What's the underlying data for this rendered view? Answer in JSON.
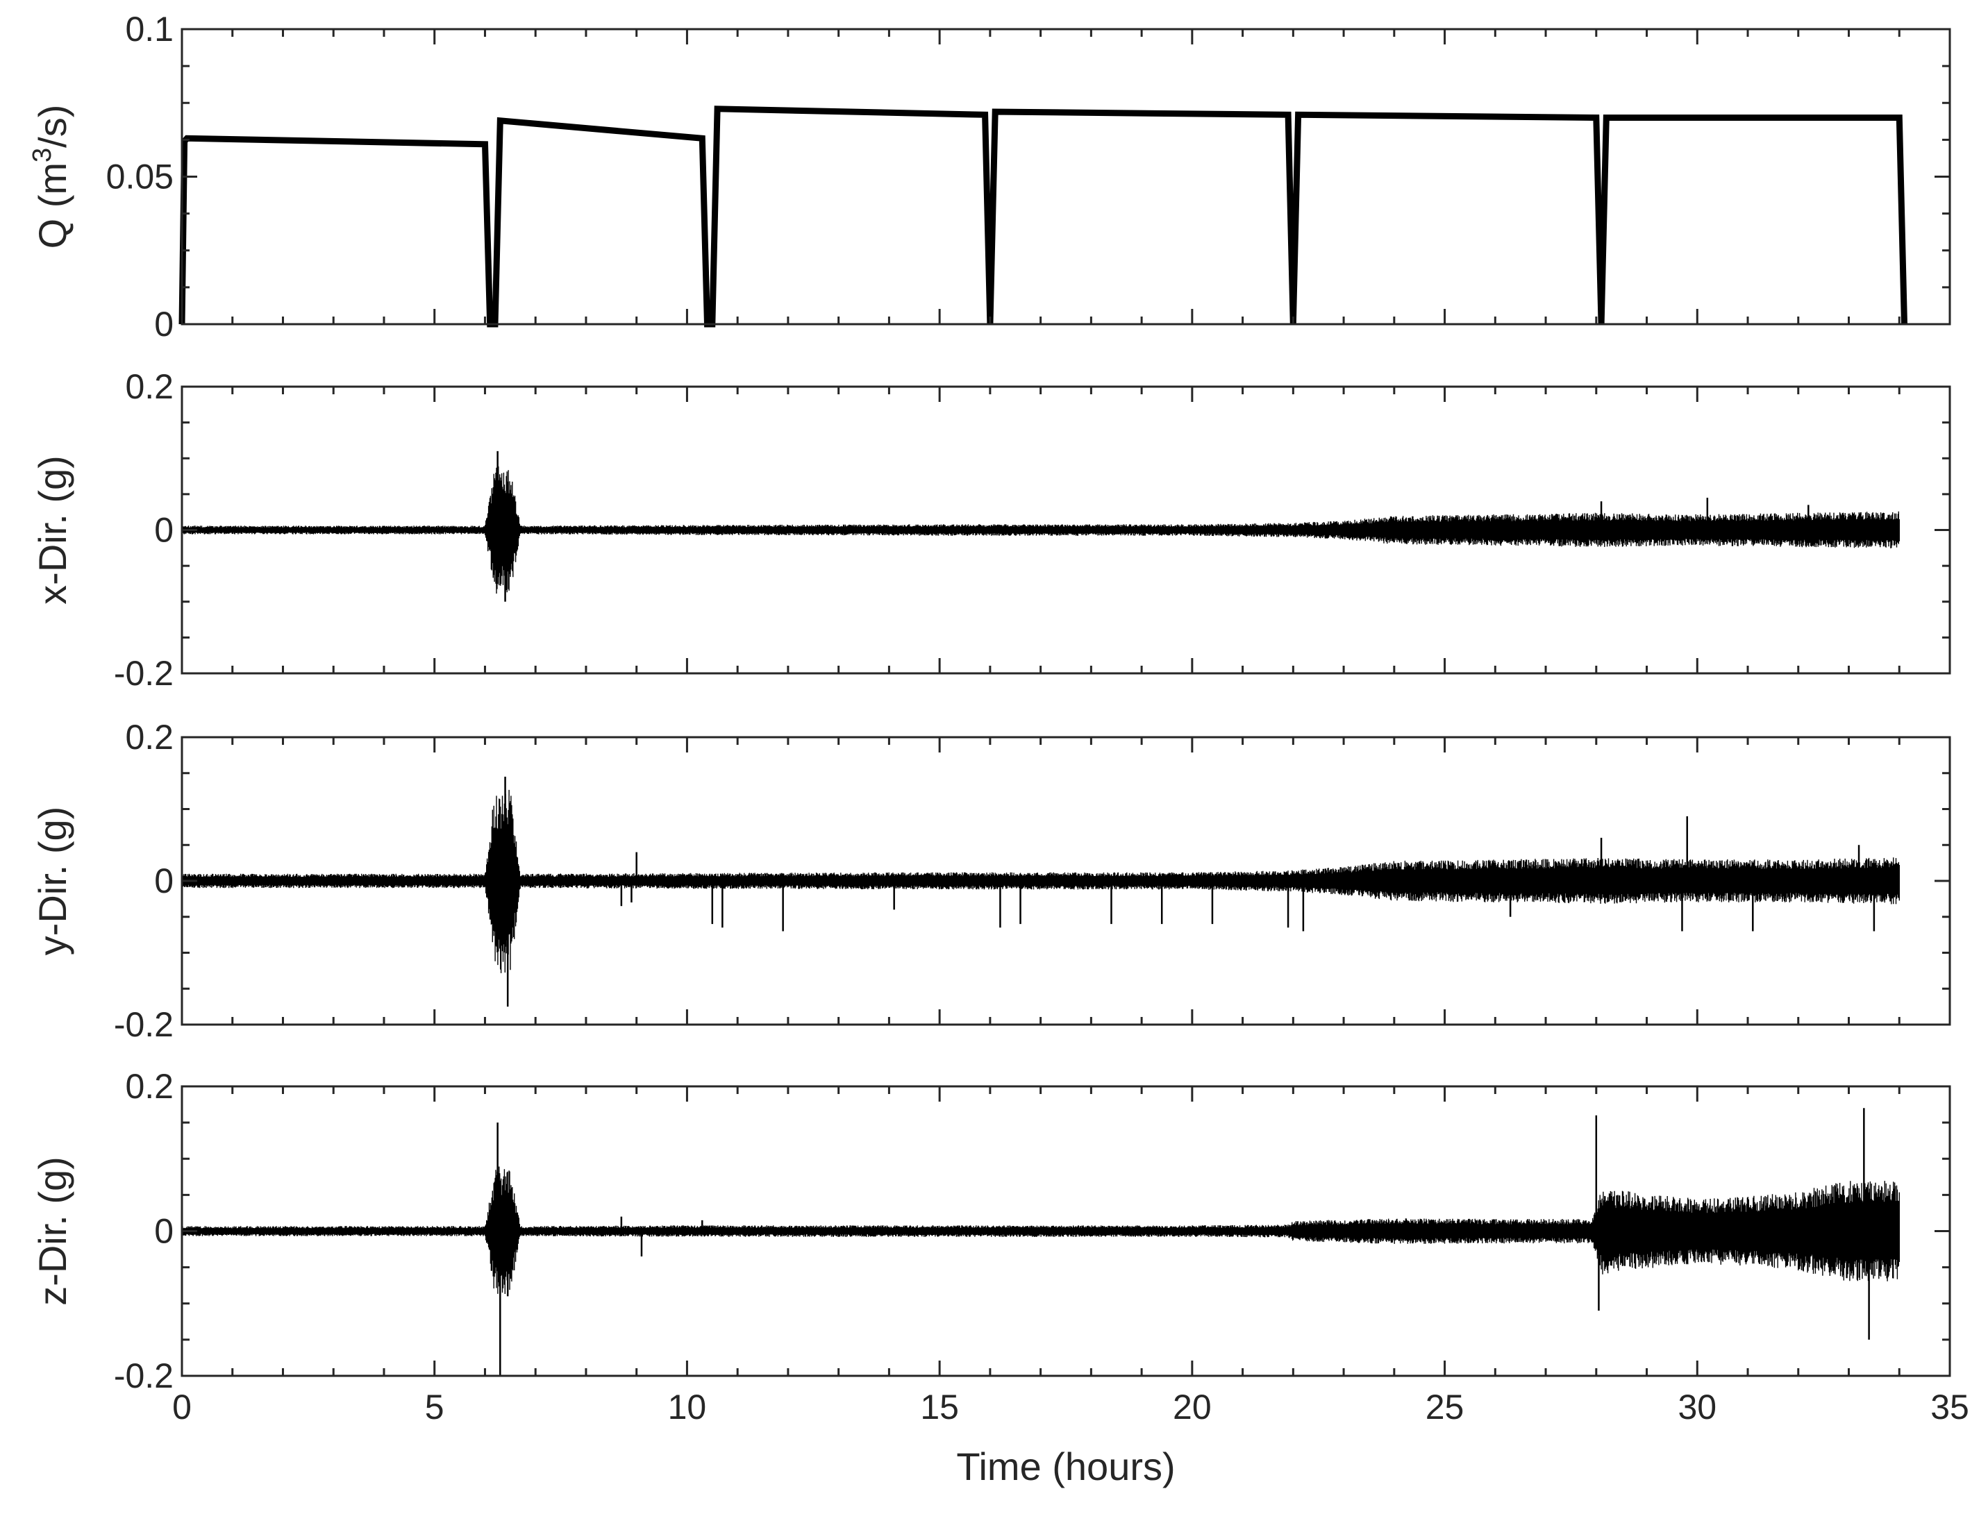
{
  "chart_data": [
    {
      "type": "line",
      "ylabel_main": "Q (m",
      "ylabel_sup": "3",
      "ylabel_tail": "/s)",
      "xlim": [
        0,
        35
      ],
      "ylim": [
        0,
        0.1
      ],
      "yticks": [
        0,
        0.05,
        0.1
      ],
      "ytick_labels": [
        "0",
        "0.05",
        "0.1"
      ],
      "color": "#000000",
      "series": [
        {
          "x": [
            0,
            0.05,
            0.1,
            6.0,
            6.1,
            6.2,
            6.3,
            10.3,
            10.4,
            10.5,
            10.6,
            15.9,
            16.0,
            16.1,
            21.9,
            22.0,
            22.1,
            28.0,
            28.1,
            28.2,
            34.0,
            34.1
          ],
          "y": [
            0,
            0.062,
            0.063,
            0.061,
            0.0,
            0.0,
            0.069,
            0.063,
            0.0,
            0.0,
            0.073,
            0.071,
            0.0,
            0.072,
            0.071,
            0.0,
            0.071,
            0.07,
            0.0,
            0.07,
            0.07,
            0.0
          ]
        }
      ]
    },
    {
      "type": "line",
      "ylabel": "x-Dir. (g)",
      "xlim": [
        0,
        35
      ],
      "ylim": [
        -0.2,
        0.2
      ],
      "yticks": [
        -0.2,
        0,
        0.2
      ],
      "ytick_labels": [
        "-0.2",
        "0",
        "0.2"
      ],
      "color": "#000000",
      "envelope": {
        "x": [
          0,
          6.0,
          6.2,
          6.5,
          6.7,
          10,
          15,
          20,
          22,
          23,
          24,
          26,
          28,
          30,
          32,
          34
        ],
        "amp": [
          0.006,
          0.006,
          0.09,
          0.09,
          0.006,
          0.007,
          0.008,
          0.008,
          0.01,
          0.013,
          0.02,
          0.022,
          0.024,
          0.022,
          0.024,
          0.026
        ]
      },
      "spikes": [
        {
          "x": 6.25,
          "y": 0.11
        },
        {
          "x": 6.4,
          "y": -0.1
        },
        {
          "x": 28.1,
          "y": 0.04
        },
        {
          "x": 30.2,
          "y": 0.045
        },
        {
          "x": 32.2,
          "y": 0.035
        }
      ]
    },
    {
      "type": "line",
      "ylabel": "y-Dir. (g)",
      "xlim": [
        0,
        35
      ],
      "ylim": [
        -0.2,
        0.2
      ],
      "yticks": [
        -0.2,
        0,
        0.2
      ],
      "ytick_labels": [
        "-0.2",
        "0",
        "0.2"
      ],
      "color": "#000000",
      "envelope": {
        "x": [
          0,
          6.0,
          6.2,
          6.5,
          6.7,
          10,
          15,
          20,
          22,
          23,
          24,
          26,
          28,
          30,
          32,
          34
        ],
        "amp": [
          0.01,
          0.01,
          0.13,
          0.13,
          0.01,
          0.011,
          0.012,
          0.012,
          0.015,
          0.02,
          0.028,
          0.03,
          0.032,
          0.03,
          0.03,
          0.033
        ]
      },
      "spikes": [
        {
          "x": 6.4,
          "y": 0.145
        },
        {
          "x": 6.45,
          "y": -0.175
        },
        {
          "x": 8.7,
          "y": -0.035
        },
        {
          "x": 8.9,
          "y": -0.03
        },
        {
          "x": 9.0,
          "y": 0.04
        },
        {
          "x": 10.5,
          "y": -0.06
        },
        {
          "x": 10.7,
          "y": -0.065
        },
        {
          "x": 11.9,
          "y": -0.07
        },
        {
          "x": 14.1,
          "y": -0.04
        },
        {
          "x": 16.2,
          "y": -0.065
        },
        {
          "x": 16.6,
          "y": -0.06
        },
        {
          "x": 18.4,
          "y": -0.06
        },
        {
          "x": 19.4,
          "y": -0.06
        },
        {
          "x": 20.4,
          "y": -0.06
        },
        {
          "x": 21.9,
          "y": -0.065
        },
        {
          "x": 22.2,
          "y": -0.07
        },
        {
          "x": 26.3,
          "y": -0.05
        },
        {
          "x": 28.1,
          "y": 0.06
        },
        {
          "x": 29.7,
          "y": -0.07
        },
        {
          "x": 29.8,
          "y": 0.09
        },
        {
          "x": 31.1,
          "y": -0.07
        },
        {
          "x": 33.5,
          "y": -0.07
        },
        {
          "x": 33.2,
          "y": 0.05
        }
      ]
    },
    {
      "type": "line",
      "ylabel": "z-Dir. (g)",
      "xlim": [
        0,
        35
      ],
      "ylim": [
        -0.2,
        0.2
      ],
      "yticks": [
        -0.2,
        0,
        0.2
      ],
      "ytick_labels": [
        "-0.2",
        "0",
        "0.2"
      ],
      "xticks": [
        0,
        5,
        10,
        15,
        20,
        25,
        30,
        35
      ],
      "xtick_labels": [
        "0",
        "5",
        "10",
        "15",
        "20",
        "25",
        "30",
        "35"
      ],
      "xlabel": "Time (hours)",
      "color": "#000000",
      "envelope": {
        "x": [
          0,
          6.0,
          6.2,
          6.5,
          6.7,
          10,
          15,
          20,
          21.9,
          22.0,
          24,
          26,
          27.9,
          28.1,
          29,
          30,
          31,
          32,
          33,
          34
        ],
        "amp": [
          0.007,
          0.007,
          0.09,
          0.09,
          0.007,
          0.008,
          0.008,
          0.008,
          0.009,
          0.014,
          0.018,
          0.017,
          0.017,
          0.06,
          0.052,
          0.045,
          0.048,
          0.055,
          0.07,
          0.07
        ]
      },
      "spikes": [
        {
          "x": 6.25,
          "y": 0.15
        },
        {
          "x": 6.3,
          "y": -0.2
        },
        {
          "x": 6.45,
          "y": -0.09
        },
        {
          "x": 8.7,
          "y": 0.02
        },
        {
          "x": 9.1,
          "y": -0.035
        },
        {
          "x": 10.3,
          "y": 0.015
        },
        {
          "x": 28.0,
          "y": 0.16
        },
        {
          "x": 28.05,
          "y": -0.11
        },
        {
          "x": 33.3,
          "y": 0.17
        },
        {
          "x": 33.4,
          "y": -0.15
        }
      ]
    }
  ]
}
